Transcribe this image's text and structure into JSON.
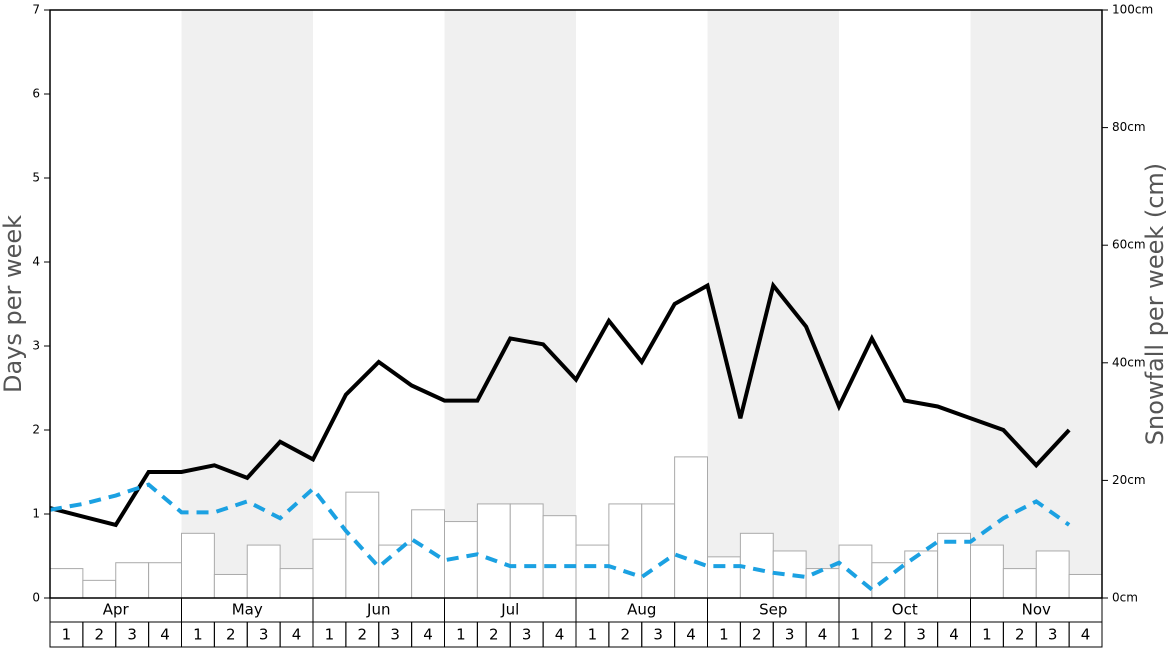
{
  "chart_data": {
    "type": "combo",
    "y_label": "Days per week",
    "y2_label": "Snowfall per week (cm)",
    "months": [
      "Apr",
      "May",
      "Jun",
      "Jul",
      "Aug",
      "Sep",
      "Oct",
      "Nov"
    ],
    "categories": [
      "1",
      "2",
      "3",
      "4",
      "1",
      "2",
      "3",
      "4",
      "1",
      "2",
      "3",
      "4",
      "1",
      "2",
      "3",
      "4",
      "1",
      "2",
      "3",
      "4",
      "1",
      "2",
      "3",
      "4",
      "1",
      "2",
      "3",
      "4",
      "1",
      "2",
      "3",
      "4"
    ],
    "ylim": [
      0,
      7
    ],
    "yticks": [
      0,
      1,
      2,
      3,
      4,
      5,
      6,
      7
    ],
    "y2lim": [
      0,
      100
    ],
    "y2ticks": [
      {
        "value": 0,
        "label": "0cm"
      },
      {
        "value": 20,
        "label": "20cm"
      },
      {
        "value": 40,
        "label": "40cm"
      },
      {
        "value": 60,
        "label": "60cm"
      },
      {
        "value": 80,
        "label": "80cm"
      },
      {
        "value": 100,
        "label": "100cm"
      }
    ],
    "shade_color": "#f0f0f0",
    "series": [
      {
        "type": "bar",
        "axis": "y2",
        "color": "#ffffff",
        "edge_color": "#aaaaaa",
        "values": [
          5,
          3,
          6,
          6,
          11,
          4,
          9,
          5,
          10,
          18,
          9,
          15,
          13,
          16,
          16,
          14,
          9,
          16,
          16,
          24,
          7,
          11,
          8,
          5,
          9,
          6,
          8,
          11,
          9,
          5,
          8,
          4
        ]
      },
      {
        "type": "line",
        "color": "#000000",
        "dashed": false,
        "values": [
          1.07,
          0.97,
          0.87,
          1.5,
          1.5,
          1.58,
          1.43,
          1.86,
          1.65,
          2.42,
          2.81,
          2.53,
          2.35,
          2.35,
          3.09,
          3.02,
          2.6,
          3.3,
          2.81,
          3.5,
          3.72,
          2.14,
          3.72,
          3.23,
          2.28,
          3.09,
          2.35,
          2.28,
          2.14,
          2.0,
          1.58,
          2.0
        ]
      },
      {
        "type": "line",
        "color": "#1ba1e2",
        "dashed": true,
        "values": [
          1.05,
          1.12,
          1.22,
          1.35,
          1.02,
          1.02,
          1.15,
          0.95,
          1.3,
          0.8,
          0.37,
          0.7,
          0.45,
          0.52,
          0.38,
          0.38,
          0.38,
          0.38,
          0.25,
          0.52,
          0.38,
          0.38,
          0.3,
          0.25,
          0.42,
          0.1,
          0.4,
          0.67,
          0.67,
          0.95,
          1.15,
          0.87
        ]
      }
    ]
  }
}
